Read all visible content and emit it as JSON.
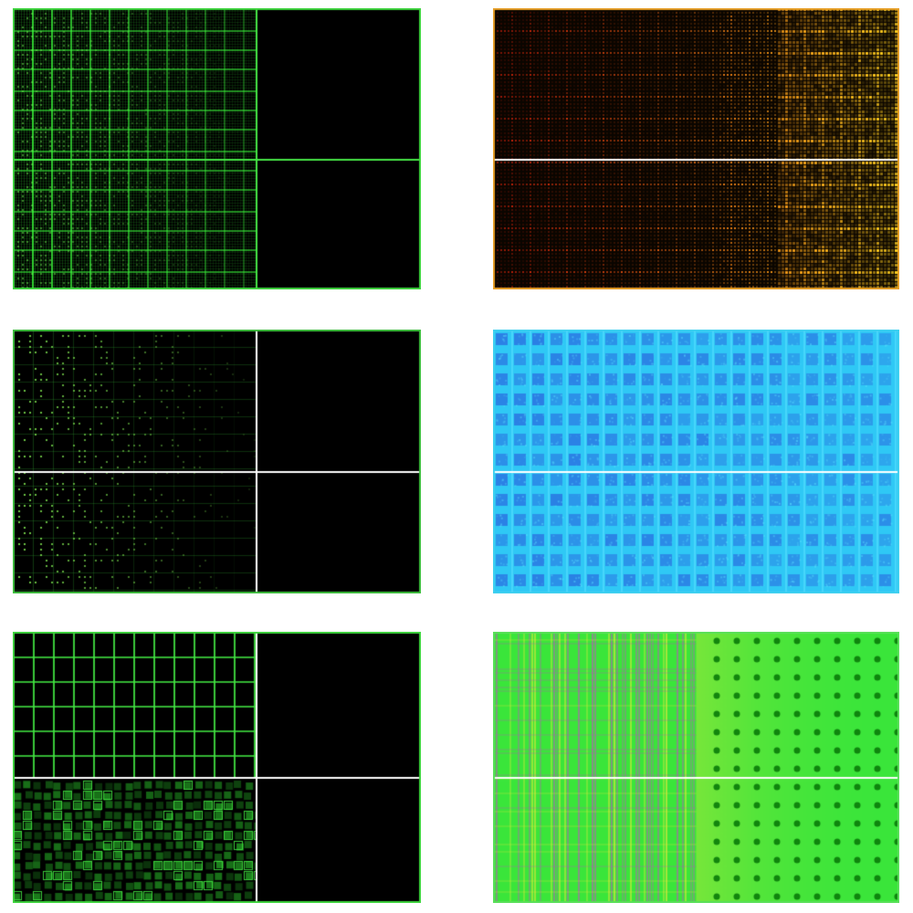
{
  "panels": [
    {
      "id": "p1",
      "style": "green-grid-fade",
      "border_color": "#3fd63f",
      "colors": {
        "line": "#3cff3c",
        "dot": "#7dff5a",
        "bg": "#000000"
      },
      "has_black_right_half": true,
      "divider_color": "#46e646"
    },
    {
      "id": "p2",
      "style": "red-to-yellow-dots",
      "border_color": "#e8a028",
      "colors": {
        "start": "#c81e0a",
        "end": "#ffd21e",
        "bg": "#0a0500"
      },
      "has_black_right_half": false,
      "divider_color": "#ffffff"
    },
    {
      "id": "p3",
      "style": "green-sparse-dots",
      "border_color": "#3fbf3f",
      "colors": {
        "line": "#2e9a2e",
        "dot": "#8dff5a",
        "bg": "#000000"
      },
      "has_black_right_half": true,
      "divider_color": "#ffffff"
    },
    {
      "id": "p4",
      "style": "cyan-blue-grid",
      "border_color": "#3fd0f0",
      "colors": {
        "bg": "#2fc8f5",
        "cell": "#2a6fe0",
        "line": "#5ae0ff"
      },
      "has_black_right_half": false,
      "divider_color": "#ffffff"
    },
    {
      "id": "p5",
      "style": "green-blocks",
      "border_color": "#3fd63f",
      "colors": {
        "line": "#40e040",
        "block": "#1f8f1f",
        "bg": "#000000"
      },
      "has_black_right_half": true,
      "divider_color": "#ffffff"
    },
    {
      "id": "p6",
      "style": "green-yellow-noisy",
      "border_color": "#5ae05a",
      "colors": {
        "bg": "#3ae53a",
        "accent1": "#e8e83a",
        "accent2": "#c050c0",
        "dot": "#0a7a0a"
      },
      "has_black_right_half": false,
      "divider_color": "#ffffff"
    }
  ]
}
